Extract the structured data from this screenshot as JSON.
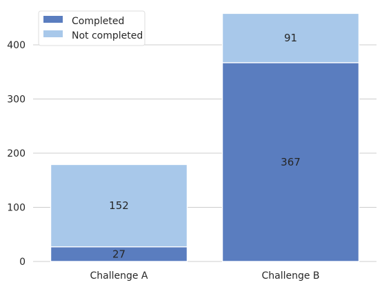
{
  "chart_data": {
    "type": "bar",
    "stacked": true,
    "categories": [
      "Challenge A",
      "Challenge B"
    ],
    "series": [
      {
        "name": "Completed",
        "values": [
          27,
          367
        ],
        "color": "#5a7dbf"
      },
      {
        "name": "Not completed",
        "values": [
          152,
          91
        ],
        "color": "#a8c8ea"
      }
    ],
    "title": "",
    "xlabel": "",
    "ylabel": "",
    "ylim": [
      0,
      470
    ],
    "yticks": [
      0,
      100,
      200,
      300,
      400
    ],
    "grid": "y",
    "legend_position": "top-left",
    "colors": {
      "grid": "#cccccc",
      "text": "#262626",
      "background": "#ffffff"
    }
  }
}
